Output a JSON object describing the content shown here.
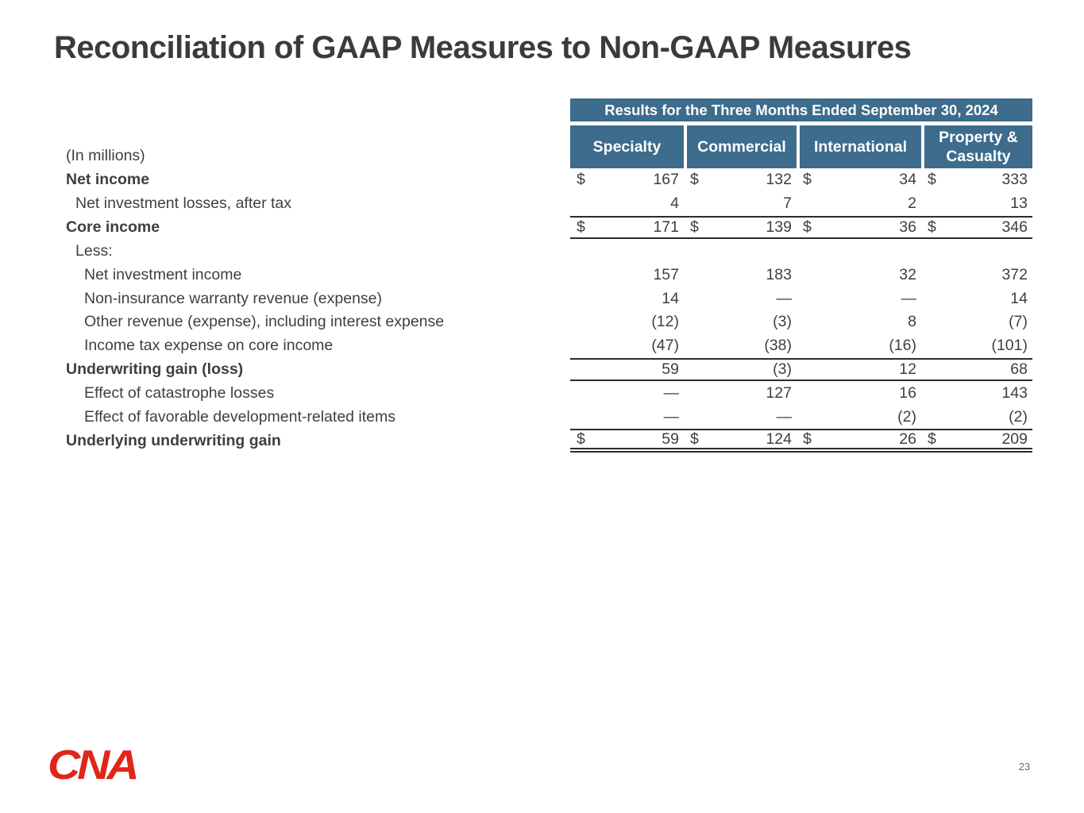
{
  "slide": {
    "title": "Reconciliation of GAAP Measures to Non-GAAP Measures",
    "page_number": "23",
    "logo_text": "CNA"
  },
  "table": {
    "period_header": "Results for the Three Months Ended September 30, 2024",
    "unit_label": "(In millions)",
    "columns": [
      "Specialty",
      "Commercial",
      "International",
      "Property & Casualty"
    ],
    "rows": [
      {
        "label": "Net income",
        "bold": true,
        "indent": 0,
        "dollar": true,
        "values": [
          "167",
          "132",
          "34",
          "333"
        ]
      },
      {
        "label": "Net investment losses, after tax",
        "bold": false,
        "indent": 1,
        "dollar": false,
        "values": [
          "4",
          "7",
          "2",
          "13"
        ]
      },
      {
        "label": "Core income",
        "bold": true,
        "indent": 0,
        "dollar": true,
        "values": [
          "171",
          "139",
          "36",
          "346"
        ],
        "border_top": true,
        "border_bottom": true
      },
      {
        "label": "Less:",
        "bold": false,
        "indent": 1,
        "dollar": false,
        "values": [
          "",
          "",
          "",
          ""
        ]
      },
      {
        "label": "Net investment income",
        "bold": false,
        "indent": 2,
        "dollar": false,
        "values": [
          "157",
          "183",
          "32",
          "372"
        ]
      },
      {
        "label": "Non-insurance warranty revenue (expense)",
        "bold": false,
        "indent": 2,
        "dollar": false,
        "values": [
          "14",
          "—",
          "—",
          "14"
        ]
      },
      {
        "label": "Other revenue (expense), including interest expense",
        "bold": false,
        "indent": 2,
        "dollar": false,
        "values": [
          "(12)",
          "(3)",
          "8",
          "(7)"
        ]
      },
      {
        "label": "Income tax expense on core income",
        "bold": false,
        "indent": 2,
        "dollar": false,
        "values": [
          "(47)",
          "(38)",
          "(16)",
          "(101)"
        ]
      },
      {
        "label": "Underwriting gain (loss)",
        "bold": true,
        "indent": 0,
        "dollar": false,
        "values": [
          "59",
          "(3)",
          "12",
          "68"
        ],
        "border_top": true,
        "border_bottom": true
      },
      {
        "label": "Effect of catastrophe losses",
        "bold": false,
        "indent": 2,
        "dollar": false,
        "values": [
          "—",
          "127",
          "16",
          "143"
        ]
      },
      {
        "label": "Effect of favorable development-related items",
        "bold": false,
        "indent": 2,
        "dollar": false,
        "values": [
          "—",
          "—",
          "(2)",
          "(2)"
        ]
      },
      {
        "label": "Underlying underwriting gain",
        "bold": true,
        "indent": 0,
        "dollar": true,
        "values": [
          "59",
          "124",
          "26",
          "209"
        ],
        "border_top": true,
        "double_bottom": true
      }
    ]
  },
  "colors": {
    "header_blue": "#3d6c8c",
    "text_dark": "#3f3f3f",
    "rule": "#2b2b2b",
    "logo_red": "#e02619",
    "page_gray": "#6b6b6b"
  }
}
